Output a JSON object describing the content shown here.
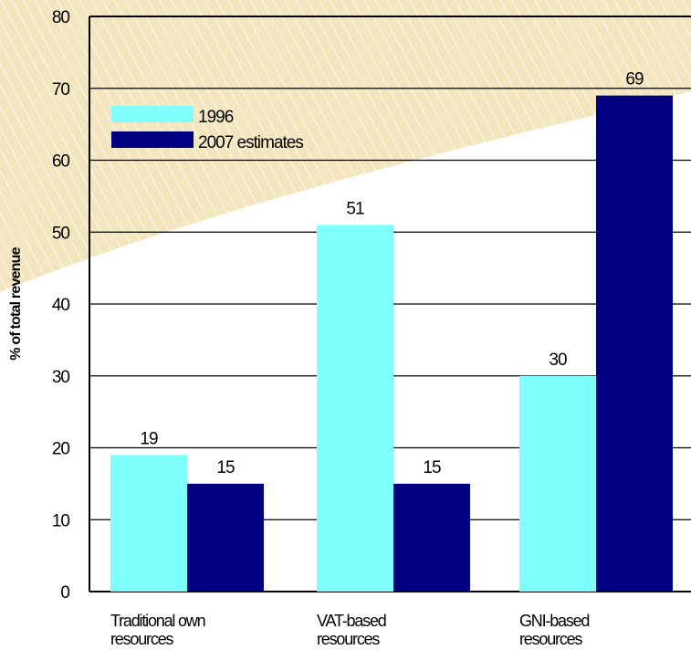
{
  "chart_data": {
    "type": "bar",
    "title": "",
    "xlabel": "",
    "ylabel": "% of total revenue",
    "ylim": [
      0,
      80
    ],
    "yticks": [
      "0",
      "10",
      "20",
      "30",
      "40",
      "50",
      "60",
      "70",
      "80"
    ],
    "grid": true,
    "legend_position": "top-left",
    "categories": [
      [
        "Traditional own",
        "resources"
      ],
      [
        "VAT-based",
        "resources"
      ],
      [
        "GNI-based",
        "resources"
      ]
    ],
    "series": [
      {
        "name": "1996",
        "color": "#80ffff",
        "values": [
          19,
          51,
          30
        ],
        "labels": [
          "19",
          "51",
          "30"
        ]
      },
      {
        "name": "2007 estimates",
        "color": "#000080",
        "values": [
          15,
          15,
          69
        ],
        "labels": [
          "15",
          "15",
          "69"
        ]
      }
    ],
    "background_color": "#f3e6be"
  }
}
